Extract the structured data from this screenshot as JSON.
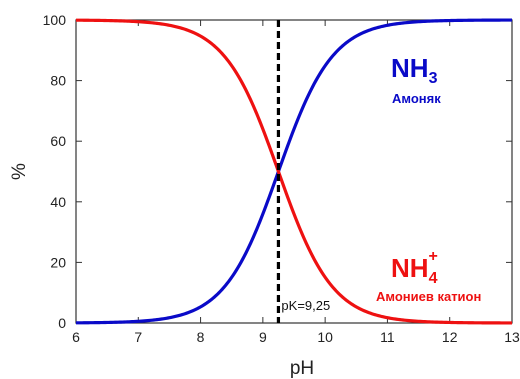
{
  "chart_data": {
    "type": "line",
    "xlabel": "pH",
    "ylabel": "%",
    "xlim": [
      6,
      13
    ],
    "ylim": [
      0,
      100
    ],
    "xticks": [
      "6",
      "7",
      "8",
      "9",
      "10",
      "11",
      "12",
      "13"
    ],
    "yticks": [
      "0",
      "20",
      "40",
      "60",
      "80",
      "100"
    ],
    "pK": 9.25,
    "pk_label": "pK=9,25",
    "series": [
      {
        "formula": "NH",
        "subscript": "3",
        "label": "Амоняк",
        "color": "#0a0ac8",
        "x": [
          6.0,
          6.5,
          7.0,
          7.5,
          8.0,
          8.25,
          8.5,
          8.75,
          9.0,
          9.25,
          9.5,
          9.75,
          10.0,
          10.25,
          10.5,
          11.0,
          11.5,
          12.0,
          12.5,
          13.0
        ],
        "values": [
          0.1,
          0.2,
          0.5,
          1.7,
          5.3,
          9.1,
          15.1,
          24.0,
          36.0,
          50.0,
          64.0,
          76.0,
          84.9,
          90.9,
          94.7,
          98.3,
          99.5,
          99.8,
          99.9,
          100.0
        ]
      },
      {
        "formula": "NH",
        "subscript": "4",
        "superscript": "+",
        "label": "Амониев катион",
        "color": "#ee1111",
        "x": [
          6.0,
          6.5,
          7.0,
          7.5,
          8.0,
          8.25,
          8.5,
          8.75,
          9.0,
          9.25,
          9.5,
          9.75,
          10.0,
          10.25,
          10.5,
          11.0,
          11.5,
          12.0,
          12.5,
          13.0
        ],
        "values": [
          99.9,
          99.8,
          99.5,
          98.3,
          94.7,
          90.9,
          84.9,
          76.0,
          64.0,
          50.0,
          36.0,
          24.0,
          15.1,
          9.1,
          5.3,
          1.7,
          0.5,
          0.2,
          0.1,
          0.0
        ]
      }
    ]
  }
}
